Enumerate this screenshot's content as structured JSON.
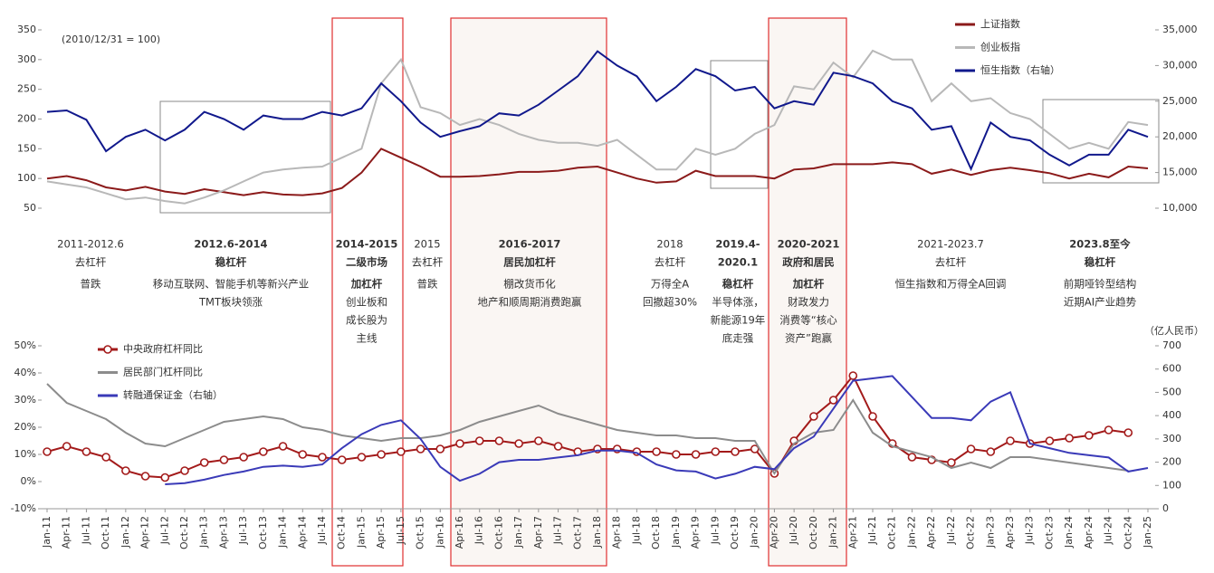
{
  "charts": [
    {
      "type": "line",
      "note": "(2010/12/31 = 100)",
      "categories": [
        "Jan-11",
        "Apr-11",
        "Jul-11",
        "Oct-11",
        "Jan-12",
        "Apr-12",
        "Jul-12",
        "Oct-12",
        "Jan-13",
        "Apr-13",
        "Jul-13",
        "Oct-13",
        "Jan-14",
        "Apr-14",
        "Jul-14",
        "Oct-14",
        "Jan-15",
        "Apr-15",
        "Jul-15",
        "Oct-15",
        "Jan-16",
        "Apr-16",
        "Jul-16",
        "Oct-16",
        "Jan-17",
        "Apr-17",
        "Jul-17",
        "Oct-17",
        "Jan-18",
        "Apr-18",
        "Jul-18",
        "Oct-18",
        "Jan-19",
        "Apr-19",
        "Jul-19",
        "Oct-19",
        "Jan-20",
        "Apr-20",
        "Jul-20",
        "Oct-20",
        "Jan-21",
        "Apr-21",
        "Jul-21",
        "Oct-21",
        "Jan-22",
        "Apr-22",
        "Jul-22",
        "Oct-22",
        "Jan-23",
        "Apr-23",
        "Jul-23",
        "Oct-23",
        "Jan-24",
        "Apr-24",
        "Jul-24",
        "Oct-24",
        "Jan-25"
      ],
      "ylim": [
        50,
        350
      ],
      "yticks": [
        50,
        100,
        150,
        200,
        250,
        300,
        350
      ],
      "y2lim": [
        10000,
        35000
      ],
      "y2ticks": [
        {
          "value": 10000,
          "label": "10,000"
        },
        {
          "value": 15000,
          "label": "15,000"
        },
        {
          "value": 20000,
          "label": "20,000"
        },
        {
          "value": 25000,
          "label": "25,000"
        },
        {
          "value": 30000,
          "label": "30,000"
        },
        {
          "value": 35000,
          "label": "35,000"
        }
      ],
      "series": [
        {
          "name": "上证指数",
          "color": "#8b1a1a",
          "values": [
            100,
            104,
            97,
            85,
            80,
            86,
            78,
            74,
            82,
            77,
            72,
            77,
            73,
            72,
            75,
            84,
            110,
            150,
            135,
            120,
            103,
            103,
            104,
            107,
            111,
            111,
            113,
            118,
            120,
            110,
            100,
            93,
            95,
            113,
            104,
            104,
            104,
            100,
            115,
            117,
            124,
            124,
            124,
            127,
            124,
            108,
            115,
            106,
            114,
            118,
            114,
            109,
            100,
            108,
            102,
            120,
            117
          ]
        },
        {
          "name": "创业板指",
          "color": "#b8b8b8",
          "values": [
            95,
            90,
            85,
            75,
            65,
            68,
            62,
            58,
            68,
            80,
            95,
            110,
            115,
            118,
            120,
            135,
            150,
            260,
            300,
            220,
            210,
            190,
            200,
            190,
            175,
            165,
            160,
            160,
            155,
            165,
            140,
            115,
            115,
            150,
            140,
            150,
            175,
            190,
            255,
            250,
            295,
            270,
            315,
            300,
            300,
            230,
            260,
            230,
            235,
            210,
            200,
            175,
            150,
            160,
            150,
            195,
            190
          ]
        },
        {
          "name": "恒生指数（右轴）",
          "color": "#10188c",
          "axis": "y2",
          "values": [
            23500,
            23700,
            22400,
            18000,
            20000,
            21000,
            19500,
            21000,
            23500,
            22500,
            21000,
            23000,
            22500,
            22500,
            23500,
            23000,
            24000,
            27500,
            25000,
            22000,
            20000,
            20800,
            21500,
            23300,
            23000,
            24500,
            26500,
            28500,
            32000,
            30000,
            28500,
            25000,
            27000,
            29500,
            28500,
            26500,
            27000,
            24000,
            25000,
            24500,
            29000,
            28500,
            27500,
            25000,
            24000,
            21000,
            21500,
            15500,
            22000,
            20000,
            19500,
            17500,
            16000,
            17500,
            17500,
            21000,
            20000
          ]
        }
      ]
    },
    {
      "type": "line",
      "y2_unit": "（亿人民币）",
      "ylim": [
        -10,
        50
      ],
      "yticks": [
        {
          "value": -10,
          "label": "-10%"
        },
        {
          "value": 0,
          "label": "0%"
        },
        {
          "value": 10,
          "label": "10%"
        },
        {
          "value": 20,
          "label": "20%"
        },
        {
          "value": 30,
          "label": "30%"
        },
        {
          "value": 40,
          "label": "40%"
        },
        {
          "value": 50,
          "label": "50%"
        }
      ],
      "y2lim": [
        0,
        700
      ],
      "y2ticks": [
        0,
        100,
        200,
        300,
        400,
        500,
        600,
        700
      ],
      "series": [
        {
          "name": "中央政府杠杆同比",
          "color": "#a31a1a",
          "marker": "circle",
          "values": [
            11,
            13,
            11,
            9,
            4,
            2,
            1.5,
            4,
            7,
            8,
            9,
            11,
            13,
            10,
            9,
            8,
            9,
            10,
            11,
            12,
            12,
            14,
            15,
            15,
            14,
            15,
            13,
            11,
            12,
            12,
            11,
            11,
            10,
            10,
            11,
            11,
            12,
            3,
            15,
            24,
            30,
            39,
            24,
            14,
            9,
            8,
            7,
            12,
            11,
            15,
            14,
            15,
            16,
            17,
            19,
            18,
            null
          ]
        },
        {
          "name": "居民部门杠杆同比",
          "color": "#8c8c8c",
          "values": [
            36,
            29,
            26,
            23,
            18,
            14,
            13,
            16,
            19,
            22,
            23,
            24,
            23,
            20,
            19,
            17,
            16,
            15,
            16,
            16,
            17,
            19,
            22,
            24,
            26,
            28,
            25,
            23,
            21,
            19,
            18,
            17,
            17,
            16,
            16,
            15,
            15,
            3,
            14,
            18,
            19,
            30,
            18,
            13,
            11,
            9,
            5,
            7,
            5,
            9,
            9,
            8,
            7,
            6,
            5,
            4,
            null
          ]
        },
        {
          "name": "转融通保证金（右轴）",
          "color": "#3a3ab8",
          "axis": "y2",
          "values": [
            null,
            null,
            null,
            null,
            null,
            null,
            105,
            110,
            125,
            145,
            160,
            180,
            185,
            180,
            190,
            260,
            320,
            360,
            380,
            300,
            180,
            120,
            150,
            200,
            210,
            210,
            220,
            230,
            250,
            250,
            240,
            190,
            165,
            160,
            130,
            150,
            180,
            170,
            260,
            310,
            430,
            550,
            560,
            570,
            480,
            390,
            390,
            380,
            460,
            500,
            280,
            260,
            240,
            230,
            220,
            160,
            175
          ]
        }
      ]
    }
  ],
  "periods": [
    {
      "lines": [
        {
          "text": "2011-2012.6",
          "color": "#888888"
        },
        {
          "text": "去杠杆",
          "color": "#888888"
        },
        {
          "text": "普跌",
          "color": "#888888"
        }
      ]
    },
    {
      "lines": [
        {
          "text": "2012.6-2014",
          "color": "#000000",
          "bold": true
        },
        {
          "text": "稳杠杆",
          "color": "#e00000",
          "bold": true
        },
        {
          "text": "移动互联网、智能手机等新兴产业",
          "color": "#e00000"
        },
        {
          "text": "TMT板块领涨",
          "color": "#e00000"
        }
      ]
    },
    {
      "lines": [
        {
          "text": "2014-2015",
          "color": "#000000",
          "bold": true
        },
        {
          "text": "二级市场",
          "color": "#000000",
          "bold": true
        },
        {
          "text": "加杠杆",
          "color": "#000000",
          "bold": true
        },
        {
          "text": "创业板和",
          "color": "#000000"
        },
        {
          "text": "成长股为",
          "color": "#000000"
        },
        {
          "text": "主线",
          "color": "#000000"
        }
      ]
    },
    {
      "lines": [
        {
          "text": "2015",
          "color": "#888888"
        },
        {
          "text": "去杠杆",
          "color": "#888888"
        },
        {
          "text": "普跌",
          "color": "#888888"
        }
      ]
    },
    {
      "lines": [
        {
          "text": "2016-2017",
          "color": "#000000",
          "bold": true
        },
        {
          "text": "居民加杠杆",
          "color": "#000000",
          "bold": true
        },
        {
          "text": "棚改货币化",
          "color": "#000000"
        },
        {
          "text": "地产和顺周期消费跑赢",
          "color": "#000000"
        }
      ]
    },
    {
      "lines": [
        {
          "text": "2018",
          "color": "#888888"
        },
        {
          "text": "去杠杆",
          "color": "#888888"
        },
        {
          "text": "万得全A",
          "color": "#888888"
        },
        {
          "text": "回撤超30%",
          "color": "#888888"
        }
      ]
    },
    {
      "lines": [
        {
          "text": "2019.4-",
          "color": "#000000",
          "bold": true
        },
        {
          "text": "2020.1",
          "color": "#000000",
          "bold": true
        },
        {
          "text": "稳杠杆",
          "color": "#e00000",
          "bold": true
        },
        {
          "text": "半导体涨，",
          "color": "#e00000"
        },
        {
          "text": "新能源19年",
          "color": "#e00000"
        },
        {
          "text": "底走强",
          "color": "#e00000"
        }
      ]
    },
    {
      "lines": [
        {
          "text": "2020-2021",
          "color": "#000000",
          "bold": true
        },
        {
          "text": "政府和居民",
          "color": "#000000",
          "bold": true
        },
        {
          "text": "加杠杆",
          "color": "#000000",
          "bold": true
        },
        {
          "text": "财政发力",
          "color": "#000000"
        },
        {
          "text": "消费等“核心",
          "color": "#000000"
        },
        {
          "text": "资产”跑赢",
          "color": "#000000"
        }
      ]
    },
    {
      "lines": [
        {
          "text": "2021-2023.7",
          "color": "#888888"
        },
        {
          "text": "去杠杆",
          "color": "#888888"
        },
        {
          "text": "恒生指数和万得全A回调",
          "color": "#888888"
        }
      ]
    },
    {
      "lines": [
        {
          "text": "2023.8至今",
          "color": "#000000",
          "bold": true
        },
        {
          "text": "稳杠杆",
          "color": "#e00000",
          "bold": true
        },
        {
          "text": "前期哑铃型结构",
          "color": "#e00000"
        },
        {
          "text": "近期AI产业趋势",
          "color": "#e00000"
        }
      ]
    }
  ]
}
